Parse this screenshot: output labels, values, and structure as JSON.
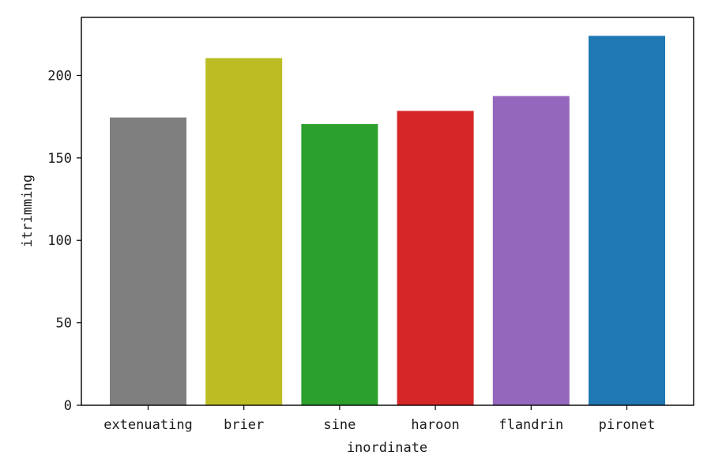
{
  "chart_data": {
    "type": "bar",
    "title": "",
    "xlabel": "inordinate",
    "ylabel": "itrimming",
    "categories": [
      "extenuating",
      "brier",
      "sine",
      "haroon",
      "flandrin",
      "pironet"
    ],
    "values": [
      174.5,
      210.5,
      170.5,
      178.5,
      187.5,
      224.0
    ],
    "colors": [
      "#7f7f7f",
      "#bcbd22",
      "#2ca02c",
      "#d62728",
      "#9467bd",
      "#1f77b4"
    ],
    "ylim": [
      0,
      235.2
    ],
    "yticks": [
      0,
      50,
      100,
      150,
      200
    ],
    "grid": false
  }
}
